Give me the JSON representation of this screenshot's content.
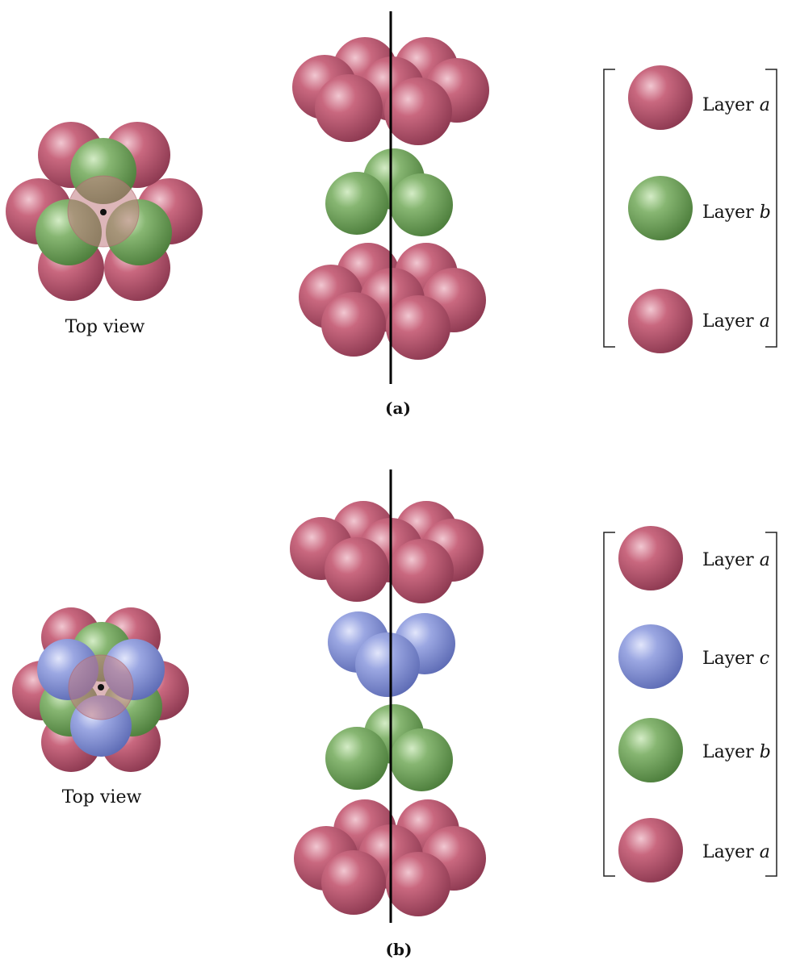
{
  "colors": {
    "layer_a": "#b95770",
    "layer_b": "#78a964",
    "layer_c": "#8a97d8",
    "axis": "#000000"
  },
  "panels": [
    {
      "id": "a",
      "label": "(a)",
      "top_view_caption": "Top view",
      "stack_order": [
        "a",
        "b",
        "a"
      ],
      "legend": [
        {
          "layer": "a",
          "prefix": "Layer ",
          "letter": "a"
        },
        {
          "layer": "b",
          "prefix": "Layer ",
          "letter": "b"
        },
        {
          "layer": "a",
          "prefix": "Layer ",
          "letter": "a"
        }
      ]
    },
    {
      "id": "b",
      "label": "(b)",
      "top_view_caption": "Top view",
      "stack_order": [
        "a",
        "c",
        "b",
        "a"
      ],
      "legend": [
        {
          "layer": "a",
          "prefix": "Layer ",
          "letter": "a"
        },
        {
          "layer": "c",
          "prefix": "Layer ",
          "letter": "c"
        },
        {
          "layer": "b",
          "prefix": "Layer ",
          "letter": "b"
        },
        {
          "layer": "a",
          "prefix": "Layer ",
          "letter": "a"
        }
      ]
    }
  ]
}
